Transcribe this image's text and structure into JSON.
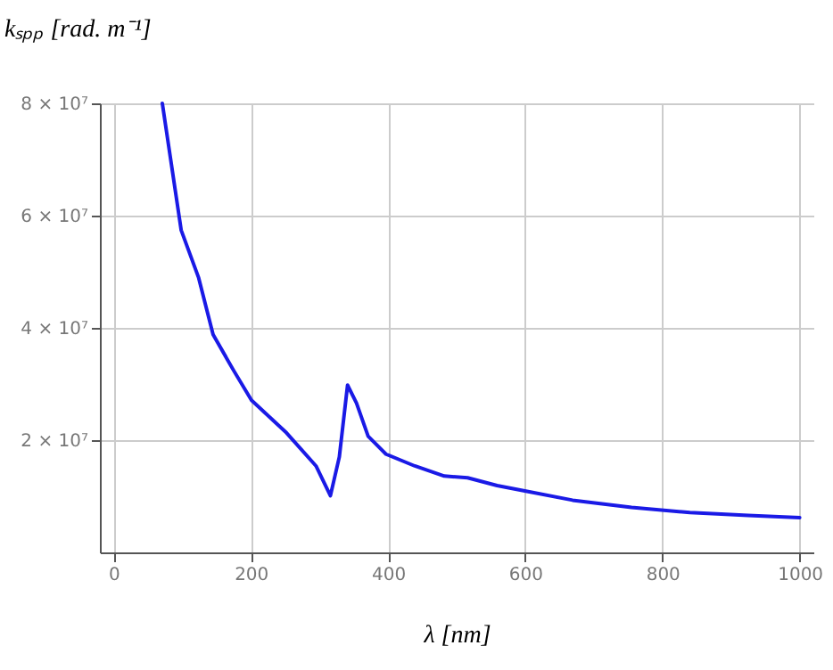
{
  "chart_data": {
    "type": "line",
    "xlabel": "λ [nm]",
    "ylabel": "kₛₚₚ [rad. m⁻¹]",
    "x": [
      71,
      98.5,
      124,
      145,
      175,
      201,
      252,
      295,
      316,
      329,
      341,
      354,
      371,
      397,
      439,
      482,
      516,
      559,
      601,
      669,
      755,
      840,
      925,
      1000
    ],
    "series": [
      {
        "color": "#1a1ae6",
        "values": [
          80000000,
          57400000,
          48900000,
          38800000,
          32400000,
          27100000,
          21300000,
          15400000,
          10100000,
          17000000,
          29800000,
          26600000,
          20700000,
          17500000,
          15400000,
          13600000,
          13300000,
          11900000,
          10900000,
          9300000,
          8000000,
          7100000,
          6600000,
          6200000
        ]
      }
    ],
    "xlim": [
      -20,
      1020
    ],
    "xticks": [
      0,
      200,
      400,
      600,
      800,
      1000
    ],
    "ylim": [
      0,
      80000000
    ],
    "yticks": [
      {
        "value": 20000000,
        "label": "2 × 10⁷"
      },
      {
        "value": 40000000,
        "label": "4 × 10⁷"
      },
      {
        "value": 60000000,
        "label": "6 × 10⁷"
      },
      {
        "value": 80000000,
        "label": "8 × 10⁷"
      }
    ],
    "grid": true,
    "line_style": "solid"
  }
}
